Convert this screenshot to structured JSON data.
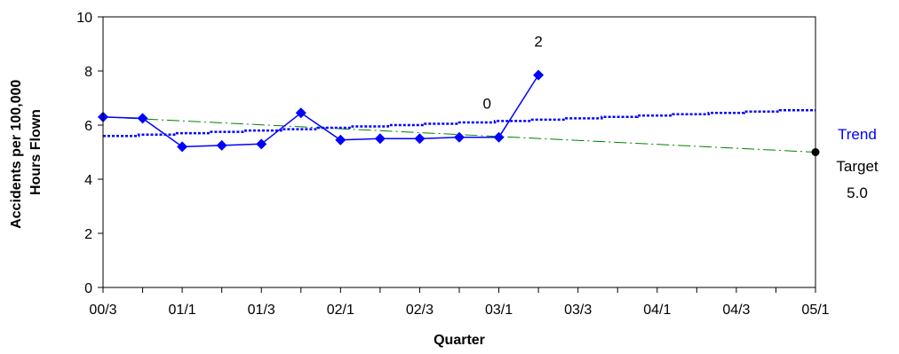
{
  "chart_data": {
    "type": "line",
    "xlabel": "Quarter",
    "ylabel_lines": [
      "Accidents per 100,000",
      "Hours Flown"
    ],
    "ylim": [
      0,
      10
    ],
    "yticks": [
      0,
      2,
      4,
      6,
      8,
      10
    ],
    "x_tick_labels": [
      "00/3",
      "01/1",
      "01/3",
      "02/1",
      "02/3",
      "03/1",
      "03/3",
      "04/1",
      "04/3",
      "05/1"
    ],
    "x_count": 19,
    "grid": false,
    "series": [
      {
        "values": [
          6.3,
          6.25,
          5.2,
          5.25,
          5.3,
          6.45,
          5.45,
          5.5,
          5.5,
          5.55,
          5.55,
          7.85
        ],
        "color": "#0000ff",
        "marker": "diamond"
      }
    ],
    "trend": {
      "label": "Trend",
      "values": [
        5.6,
        5.65,
        5.7,
        5.75,
        5.8,
        5.85,
        5.9,
        5.95,
        6.0,
        6.05,
        6.1,
        6.15,
        6.2,
        6.25,
        6.3,
        6.35,
        6.4,
        6.45,
        6.5,
        6.55
      ],
      "color": "#0000ff"
    },
    "target_line": {
      "start": 6.3,
      "end": 5.0,
      "color": "#008000"
    },
    "target_point": {
      "value": 5.0,
      "label_lines": [
        "Target",
        "5.0"
      ]
    },
    "annotations": [
      {
        "text": "0",
        "x_index": 9.7,
        "y": 6.6
      },
      {
        "text": "2",
        "x_index": 11.0,
        "y": 8.9
      }
    ]
  }
}
